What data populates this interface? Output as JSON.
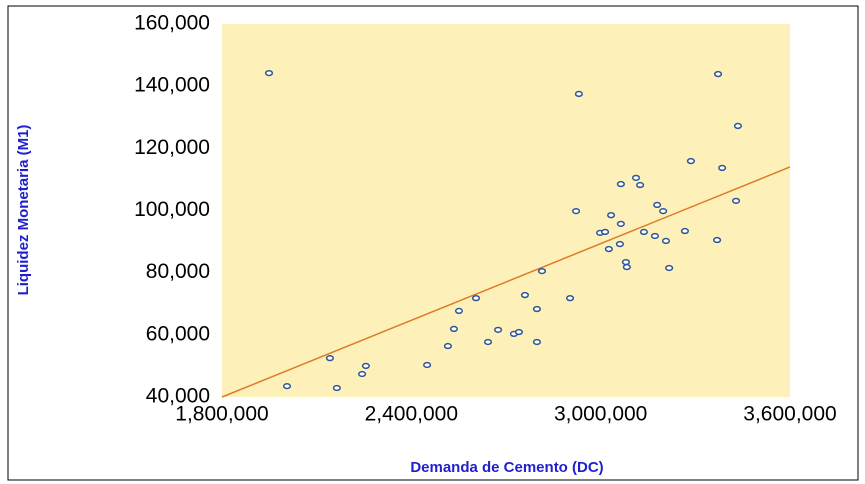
{
  "chart_data": {
    "type": "scatter",
    "xlabel": "Demanda de Cemento (DC)",
    "ylabel": "Liquidez Monetaria (M1)",
    "xlim": [
      1800000,
      3600000
    ],
    "ylim": [
      40000,
      160000
    ],
    "xticks": [
      {
        "value": 1800000,
        "label": "1,800,000"
      },
      {
        "value": 2400000,
        "label": "2,400,000"
      },
      {
        "value": 3000000,
        "label": "3,000,000"
      },
      {
        "value": 3600000,
        "label": "3,600,000"
      }
    ],
    "yticks": [
      {
        "value": 40000,
        "label": "40,000"
      },
      {
        "value": 60000,
        "label": "60,000"
      },
      {
        "value": 80000,
        "label": "80,000"
      },
      {
        "value": 100000,
        "label": "100,000"
      },
      {
        "value": 120000,
        "label": "120,000"
      },
      {
        "value": 140000,
        "label": "140,000"
      },
      {
        "value": 160000,
        "label": "160,000"
      }
    ],
    "plot_background": "#fdf0b8",
    "series": [
      {
        "color": "#2f5597",
        "x": [
          1949000,
          2006000,
          2142000,
          2164000,
          2244000,
          2256000,
          2450000,
          2516000,
          2535000,
          2551000,
          2605000,
          2643000,
          2675000,
          2725000,
          2741000,
          2760000,
          2798000,
          2798000,
          2814000,
          2903000,
          2922000,
          2931000,
          2998000,
          3014000,
          3026000,
          3033000,
          3061000,
          3064000,
          3064000,
          3080000,
          3083000,
          3112000,
          3125000,
          3137000,
          3172000,
          3179000,
          3198000,
          3207000,
          3217000,
          3267000,
          3286000,
          3369000,
          3372000,
          3385000,
          3429000,
          3435000
        ],
        "values": [
          144200,
          43500,
          52500,
          42900,
          47400,
          50000,
          50300,
          56400,
          61900,
          67700,
          71800,
          57700,
          61600,
          60300,
          60900,
          72800,
          68300,
          57700,
          80500,
          71800,
          99800,
          137500,
          92800,
          93100,
          87600,
          98500,
          89200,
          108500,
          95700,
          83400,
          81800,
          110500,
          108200,
          93100,
          91800,
          101800,
          99800,
          90200,
          81500,
          93400,
          115900,
          90500,
          143900,
          113700,
          103100,
          127200
        ]
      }
    ],
    "trendline": {
      "color": "#e07b2a",
      "x": [
        1800000,
        3600000
      ],
      "values": [
        40000,
        114000
      ]
    }
  }
}
